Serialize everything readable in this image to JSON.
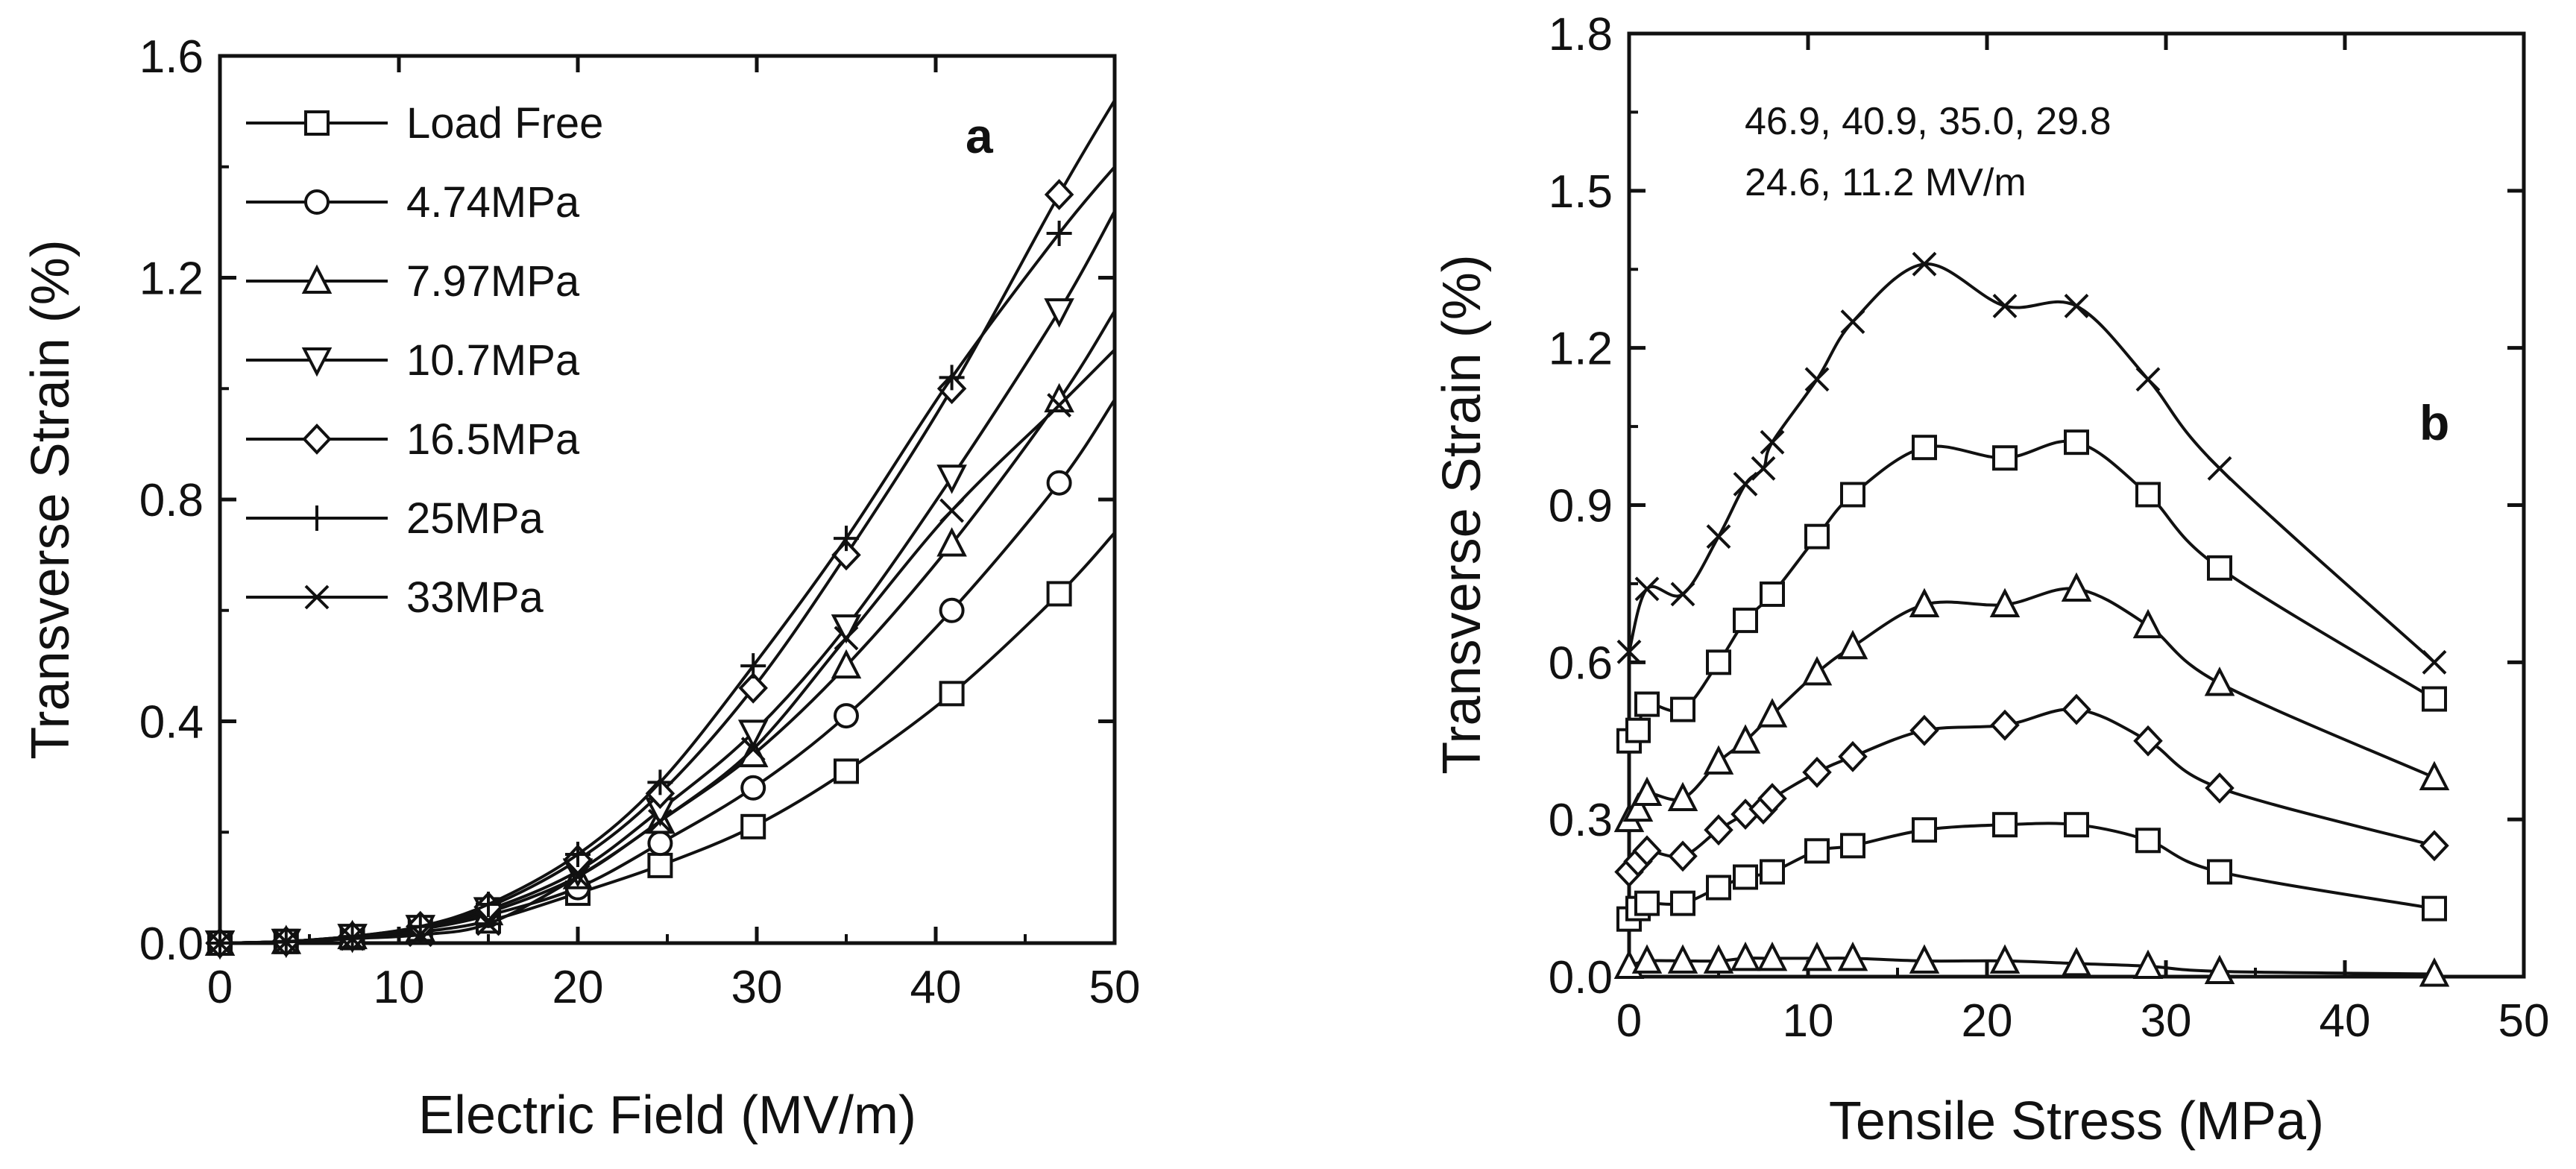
{
  "chart_data": [
    {
      "type": "line",
      "panel_label": "a",
      "xlabel": "Electric Field (MV/m)",
      "ylabel": "Transverse Strain (%)",
      "xlim": [
        0,
        50
      ],
      "ylim": [
        0,
        1.6
      ],
      "xticks": [
        0,
        10,
        20,
        30,
        40,
        50
      ],
      "yticks": [
        0.0,
        0.4,
        0.8,
        1.2,
        1.6
      ],
      "ytick_labels": [
        "0.0",
        "0.4",
        "0.8",
        "1.2",
        "1.6"
      ],
      "legend_position": "top-left",
      "x": [
        0,
        3.7,
        7.4,
        11.2,
        15,
        20,
        24.6,
        29.8,
        35,
        40.9,
        46.9,
        50
      ],
      "series": [
        {
          "name": "Load Free",
          "marker": "square",
          "values": [
            0,
            0.003,
            0.01,
            0.02,
            0.04,
            0.09,
            0.14,
            0.21,
            0.31,
            0.45,
            0.63,
            0.74
          ]
        },
        {
          "name": "4.74MPa",
          "marker": "circle",
          "values": [
            0,
            0.003,
            0.012,
            0.025,
            0.05,
            0.1,
            0.18,
            0.28,
            0.41,
            0.6,
            0.83,
            0.98
          ]
        },
        {
          "name": "7.97MPa",
          "marker": "triangle-up",
          "values": [
            0,
            0.003,
            0.012,
            0.025,
            0.055,
            0.12,
            0.22,
            0.34,
            0.5,
            0.72,
            0.98,
            1.14
          ]
        },
        {
          "name": "10.7MPa",
          "marker": "triangle-down",
          "values": [
            0,
            0.003,
            0.012,
            0.028,
            0.06,
            0.13,
            0.24,
            0.38,
            0.57,
            0.84,
            1.14,
            1.32
          ]
        },
        {
          "name": "16.5MPa",
          "marker": "diamond",
          "values": [
            0,
            0.003,
            0.012,
            0.03,
            0.065,
            0.15,
            0.27,
            0.46,
            0.7,
            1.0,
            1.35,
            1.52
          ]
        },
        {
          "name": "25MPa",
          "marker": "plus",
          "values": [
            0,
            0.003,
            0.012,
            0.03,
            0.07,
            0.16,
            0.29,
            0.5,
            0.73,
            1.02,
            1.28,
            1.4
          ]
        },
        {
          "name": "33MPa",
          "marker": "x",
          "values": [
            0,
            0.002,
            0.008,
            0.015,
            0.035,
            0.12,
            0.22,
            0.35,
            0.55,
            0.78,
            0.97,
            1.07
          ]
        }
      ]
    },
    {
      "type": "line",
      "panel_label": "b",
      "xlabel": "Tensile Stress (MPa)",
      "ylabel": "Transverse Strain (%)",
      "xlim": [
        0,
        50
      ],
      "ylim": [
        0,
        1.8
      ],
      "xticks": [
        0,
        10,
        20,
        30,
        40,
        50
      ],
      "yticks": [
        0.0,
        0.3,
        0.6,
        0.9,
        1.2,
        1.5,
        1.8
      ],
      "ytick_labels": [
        "0.0",
        "0.3",
        "0.6",
        "0.9",
        "1.2",
        "1.5",
        "1.8"
      ],
      "annotation_lines": [
        "46.9, 40.9, 35.0, 29.8",
        "24.6, 11.2 MV/m"
      ],
      "series": [
        {
          "name": "46.9 MV/m",
          "marker": "x",
          "x": [
            0,
            1,
            3,
            5,
            6.5,
            7.5,
            8,
            10.5,
            12.5,
            16.5,
            21,
            25,
            29,
            33,
            45
          ],
          "values": [
            0.62,
            0.74,
            0.73,
            0.84,
            0.94,
            0.97,
            1.02,
            1.14,
            1.25,
            1.36,
            1.28,
            1.28,
            1.14,
            0.97,
            0.6
          ]
        },
        {
          "name": "40.9 MV/m",
          "marker": "square",
          "x": [
            0,
            0.5,
            1,
            3,
            5,
            6.5,
            8,
            10.5,
            12.5,
            16.5,
            21,
            25,
            29,
            33,
            45
          ],
          "values": [
            0.45,
            0.47,
            0.52,
            0.51,
            0.6,
            0.68,
            0.73,
            0.84,
            0.92,
            1.01,
            0.99,
            1.02,
            0.92,
            0.78,
            0.53
          ]
        },
        {
          "name": "35.0 MV/m",
          "marker": "triangle-up",
          "x": [
            0,
            0.5,
            1,
            3,
            5,
            6.5,
            8,
            10.5,
            12.5,
            16.5,
            21,
            25,
            29,
            33,
            45
          ],
          "values": [
            0.3,
            0.32,
            0.35,
            0.34,
            0.41,
            0.45,
            0.5,
            0.58,
            0.63,
            0.71,
            0.71,
            0.74,
            0.67,
            0.56,
            0.38
          ]
        },
        {
          "name": "29.8 MV/m",
          "marker": "diamond",
          "x": [
            0,
            0.5,
            1,
            3,
            5,
            6.5,
            7.5,
            8,
            10.5,
            12.5,
            16.5,
            21,
            25,
            29,
            33,
            45
          ],
          "values": [
            0.2,
            0.22,
            0.24,
            0.23,
            0.28,
            0.31,
            0.32,
            0.34,
            0.39,
            0.42,
            0.47,
            0.48,
            0.51,
            0.45,
            0.36,
            0.25
          ]
        },
        {
          "name": "24.6 MV/m",
          "marker": "square",
          "x": [
            0,
            0.5,
            1,
            3,
            5,
            6.5,
            8,
            10.5,
            12.5,
            16.5,
            21,
            25,
            29,
            33,
            45
          ],
          "values": [
            0.11,
            0.13,
            0.14,
            0.14,
            0.17,
            0.19,
            0.2,
            0.24,
            0.25,
            0.28,
            0.29,
            0.29,
            0.26,
            0.2,
            0.13
          ]
        },
        {
          "name": "11.2 MV/m",
          "marker": "triangle-up",
          "x": [
            0,
            1,
            3,
            5,
            6.5,
            8,
            10.5,
            12.5,
            16.5,
            21,
            25,
            29,
            33,
            45
          ],
          "values": [
            0.02,
            0.03,
            0.03,
            0.03,
            0.035,
            0.035,
            0.035,
            0.035,
            0.03,
            0.03,
            0.025,
            0.02,
            0.01,
            0.005
          ]
        }
      ]
    }
  ]
}
